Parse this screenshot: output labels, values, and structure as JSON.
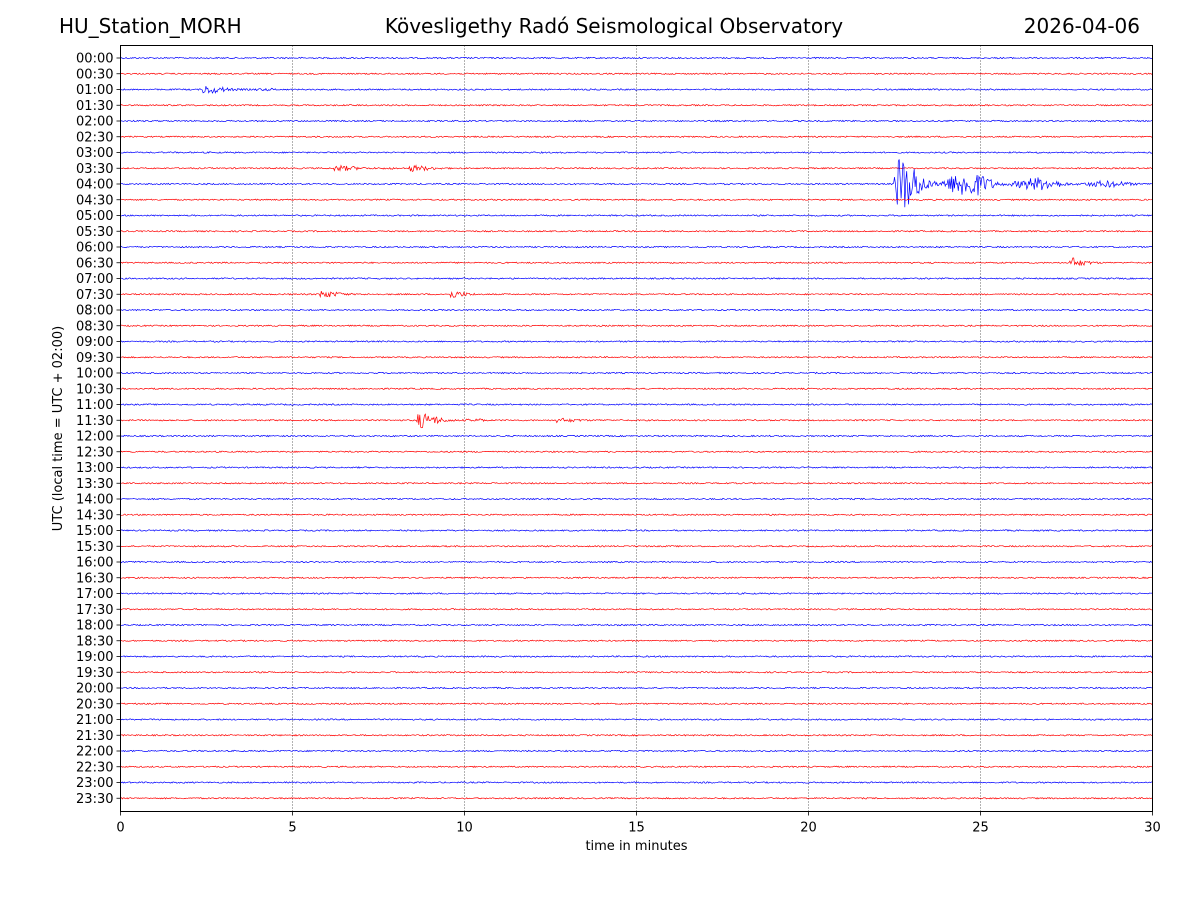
{
  "header": {
    "station": "HU_Station_MORH",
    "title": "Kövesligethy Radó Seismological Observatory",
    "date": "2026-04-06"
  },
  "colors": {
    "even_row": "#0000ff",
    "odd_row": "#ff0000",
    "grid": "#000000"
  },
  "chart_data": {
    "type": "line",
    "title": "Kövesligethy Radó Seismological Observatory",
    "xlabel": "time in minutes",
    "ylabel": "UTC (local time = UTC + 02:00)",
    "xlim": [
      0,
      30
    ],
    "xticks": [
      0,
      5,
      10,
      15,
      20,
      25,
      30
    ],
    "xgrid_lines": [
      5,
      10,
      15,
      20,
      25
    ],
    "grid": "vertical dotted",
    "rows": [
      "00:00",
      "00:30",
      "01:00",
      "01:30",
      "02:00",
      "02:30",
      "03:00",
      "03:30",
      "04:00",
      "04:30",
      "05:00",
      "05:30",
      "06:00",
      "06:30",
      "07:00",
      "07:30",
      "08:00",
      "08:30",
      "09:00",
      "09:30",
      "10:00",
      "10:30",
      "11:00",
      "11:30",
      "12:00",
      "12:30",
      "13:00",
      "13:30",
      "14:00",
      "14:30",
      "15:00",
      "15:30",
      "16:00",
      "16:30",
      "17:00",
      "17:30",
      "18:00",
      "18:30",
      "19:00",
      "19:30",
      "20:00",
      "20:30",
      "21:00",
      "21:30",
      "22:00",
      "22:30",
      "23:00",
      "23:30"
    ],
    "events": [
      {
        "row": "01:00",
        "start": 2.4,
        "end": 4.5,
        "amp": 4,
        "decay": 1.2
      },
      {
        "row": "03:30",
        "start": 6.2,
        "end": 8.0,
        "amp": 2.5,
        "decay": 1.5
      },
      {
        "row": "03:30",
        "start": 8.4,
        "end": 9.8,
        "amp": 3,
        "decay": 1.0
      },
      {
        "row": "04:00",
        "start": 22.5,
        "end": 30.0,
        "amp": 30,
        "decay": 2.6
      },
      {
        "row": "06:30",
        "start": 27.6,
        "end": 28.8,
        "amp": 6,
        "decay": 0.4
      },
      {
        "row": "07:30",
        "start": 5.8,
        "end": 7.2,
        "amp": 4,
        "decay": 0.6
      },
      {
        "row": "07:30",
        "start": 9.6,
        "end": 10.4,
        "amp": 4,
        "decay": 0.4
      },
      {
        "row": "11:30",
        "start": 8.6,
        "end": 10.6,
        "amp": 8,
        "decay": 1.0
      },
      {
        "row": "11:30",
        "start": 12.6,
        "end": 14.2,
        "amp": 2,
        "decay": 1.0
      }
    ]
  }
}
